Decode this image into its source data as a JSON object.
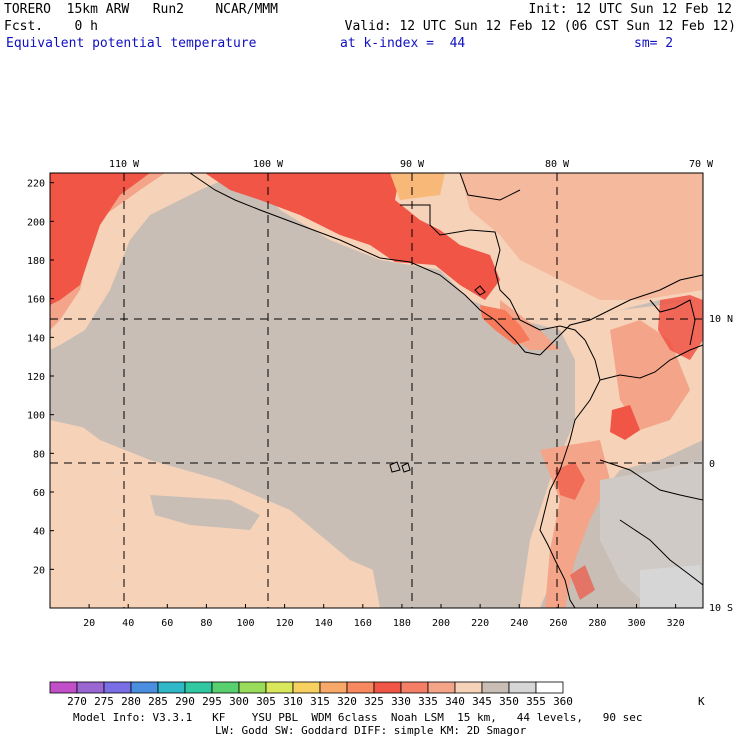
{
  "header": {
    "left_line1": "TORERO  15km ARW   Run2    NCAR/MMM",
    "left_line2": "Fcst.    0 h",
    "init": "Init: 12 UTC Sun 12 Feb 12",
    "valid": "Valid: 12 UTC Sun 12 Feb 12 (06 CST Sun 12 Feb 12)",
    "field": "Equivalent potential temperature",
    "level": "at k-index =  44",
    "smooth": "sm= 2"
  },
  "map": {
    "lon_labels": [
      "110 W",
      "100 W",
      "90 W",
      "80 W",
      "70 W"
    ],
    "lat_labels": [
      "10 N",
      "0",
      "10 S"
    ],
    "y_ticks": [
      "20",
      "40",
      "60",
      "80",
      "100",
      "120",
      "140",
      "160",
      "180",
      "200",
      "220"
    ],
    "x_ticks": [
      "20",
      "40",
      "60",
      "80",
      "100",
      "120",
      "140",
      "160",
      "180",
      "200",
      "220",
      "240",
      "260",
      "280",
      "300",
      "320"
    ],
    "colors": {
      "background_grey": "#c8beb6",
      "light_peach": "#f5d2b8",
      "salmon": "#f4a488",
      "orange_red": "#f77b5a",
      "red": "#f05545",
      "pale_orange": "#f8b878"
    }
  },
  "colorbar": {
    "labels": [
      "270",
      "275",
      "280",
      "285",
      "290",
      "295",
      "300",
      "305",
      "310",
      "315",
      "320",
      "325",
      "330",
      "335",
      "340",
      "345",
      "350",
      "355",
      "360"
    ],
    "unit": "K",
    "colors": [
      "#c04fc8",
      "#9a66d2",
      "#7a6ee6",
      "#4a8ee0",
      "#30b8c8",
      "#30c8a0",
      "#58d070",
      "#98dc5a",
      "#d8e85a",
      "#f8d060",
      "#f8a868",
      "#f78860",
      "#f05545",
      "#f47e66",
      "#f4a488",
      "#f5d2b8",
      "#c8beb6",
      "#d6d6d6",
      "#ffffff"
    ]
  },
  "footer": {
    "line1": "Model Info: V3.3.1   KF    YSU PBL  WDM 6class  Noah LSM  15 km,   44 levels,   90 sec",
    "line2": "LW: Godd SW: Goddard DIFF: simple KM: 2D Smagor"
  }
}
